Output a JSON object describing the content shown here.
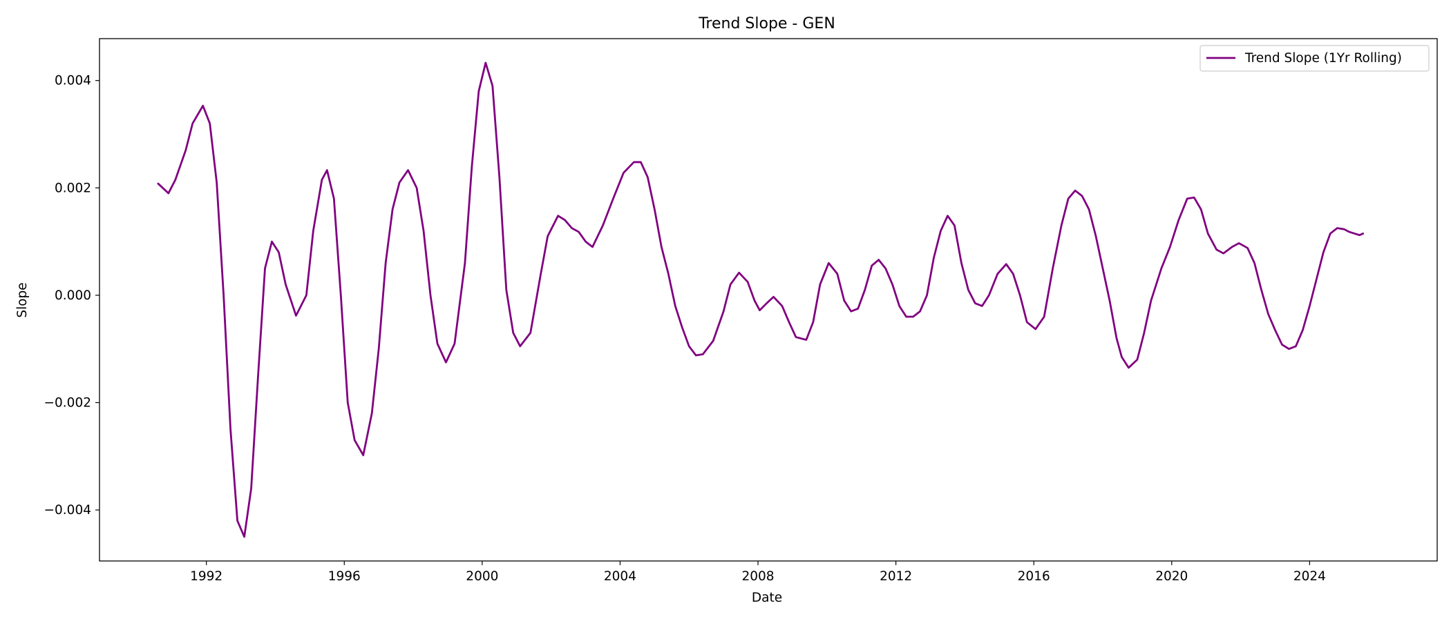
{
  "chart_data": {
    "type": "line",
    "title": "Trend Slope - GEN",
    "xlabel": "Date",
    "ylabel": "Slope",
    "xlim": [
      1988.9,
      2027.7
    ],
    "ylim": [
      -0.00495,
      0.00478
    ],
    "x_ticks": [
      1992,
      1996,
      2000,
      2004,
      2008,
      2012,
      2016,
      2020,
      2024
    ],
    "x_tick_labels": [
      "1992",
      "1996",
      "2000",
      "2004",
      "2008",
      "2012",
      "2016",
      "2020",
      "2024"
    ],
    "y_ticks": [
      -0.004,
      -0.002,
      0.0,
      0.002,
      0.004
    ],
    "y_tick_labels": [
      "−0.004",
      "−0.002",
      "0.000",
      "0.002",
      "0.004"
    ],
    "grid": false,
    "legend_position": "top-right",
    "series": [
      {
        "name": "Trend Slope (1Yr Rolling)",
        "color": "#800080",
        "points": [
          [
            1990.6,
            0.00208
          ],
          [
            1990.9,
            0.0019
          ],
          [
            1991.1,
            0.00215
          ],
          [
            1991.4,
            0.0027
          ],
          [
            1991.6,
            0.0032
          ],
          [
            1991.9,
            0.00353
          ],
          [
            1992.1,
            0.0032
          ],
          [
            1992.3,
            0.0021
          ],
          [
            1992.5,
            0.0
          ],
          [
            1992.7,
            -0.0025
          ],
          [
            1992.9,
            -0.0042
          ],
          [
            1993.1,
            -0.0045
          ],
          [
            1993.3,
            -0.0036
          ],
          [
            1993.5,
            -0.0015
          ],
          [
            1993.7,
            0.0005
          ],
          [
            1993.9,
            0.001
          ],
          [
            1994.1,
            0.0008
          ],
          [
            1994.3,
            0.0002
          ],
          [
            1994.6,
            -0.00038
          ],
          [
            1994.9,
            0.0
          ],
          [
            1995.1,
            0.0012
          ],
          [
            1995.35,
            0.00215
          ],
          [
            1995.5,
            0.00233
          ],
          [
            1995.7,
            0.0018
          ],
          [
            1995.9,
            0.0
          ],
          [
            1996.1,
            -0.002
          ],
          [
            1996.3,
            -0.0027
          ],
          [
            1996.55,
            -0.00298
          ],
          [
            1996.8,
            -0.0022
          ],
          [
            1997.0,
            -0.001
          ],
          [
            1997.2,
            0.0006
          ],
          [
            1997.4,
            0.0016
          ],
          [
            1997.6,
            0.0021
          ],
          [
            1997.85,
            0.00233
          ],
          [
            1998.1,
            0.002
          ],
          [
            1998.3,
            0.0012
          ],
          [
            1998.5,
            0.0
          ],
          [
            1998.7,
            -0.0009
          ],
          [
            1998.95,
            -0.00125
          ],
          [
            1999.2,
            -0.0009
          ],
          [
            1999.5,
            0.0006
          ],
          [
            1999.7,
            0.0024
          ],
          [
            1999.9,
            0.0038
          ],
          [
            2000.1,
            0.00433
          ],
          [
            2000.3,
            0.0039
          ],
          [
            2000.5,
            0.0022
          ],
          [
            2000.7,
            0.0001
          ],
          [
            2000.9,
            -0.0007
          ],
          [
            2001.1,
            -0.00095
          ],
          [
            2001.4,
            -0.0007
          ],
          [
            2001.7,
            0.0004
          ],
          [
            2001.9,
            0.0011
          ],
          [
            2002.2,
            0.00148
          ],
          [
            2002.4,
            0.0014
          ],
          [
            2002.6,
            0.00125
          ],
          [
            2002.8,
            0.00118
          ],
          [
            2003.0,
            0.001
          ],
          [
            2003.2,
            0.0009
          ],
          [
            2003.5,
            0.0013
          ],
          [
            2003.8,
            0.0018
          ],
          [
            2004.1,
            0.00228
          ],
          [
            2004.4,
            0.00248
          ],
          [
            2004.6,
            0.00248
          ],
          [
            2004.8,
            0.0022
          ],
          [
            2005.0,
            0.0016
          ],
          [
            2005.2,
            0.0009
          ],
          [
            2005.4,
            0.0004
          ],
          [
            2005.6,
            -0.0002
          ],
          [
            2005.8,
            -0.0006
          ],
          [
            2006.0,
            -0.00095
          ],
          [
            2006.2,
            -0.00112
          ],
          [
            2006.4,
            -0.0011
          ],
          [
            2006.7,
            -0.00085
          ],
          [
            2007.0,
            -0.0003
          ],
          [
            2007.2,
            0.0002
          ],
          [
            2007.45,
            0.00042
          ],
          [
            2007.7,
            0.00025
          ],
          [
            2007.9,
            -0.0001
          ],
          [
            2008.05,
            -0.00028
          ],
          [
            2008.25,
            -0.00015
          ],
          [
            2008.45,
            -3e-05
          ],
          [
            2008.7,
            -0.0002
          ],
          [
            2008.9,
            -0.0005
          ],
          [
            2009.1,
            -0.00078
          ],
          [
            2009.4,
            -0.00083
          ],
          [
            2009.6,
            -0.0005
          ],
          [
            2009.8,
            0.0002
          ],
          [
            2010.05,
            0.0006
          ],
          [
            2010.3,
            0.0004
          ],
          [
            2010.5,
            -0.0001
          ],
          [
            2010.7,
            -0.0003
          ],
          [
            2010.9,
            -0.00025
          ],
          [
            2011.1,
            0.0001
          ],
          [
            2011.3,
            0.00055
          ],
          [
            2011.5,
            0.00066
          ],
          [
            2011.7,
            0.0005
          ],
          [
            2011.9,
            0.0002
          ],
          [
            2012.1,
            -0.0002
          ],
          [
            2012.3,
            -0.0004
          ],
          [
            2012.5,
            -0.0004
          ],
          [
            2012.7,
            -0.0003
          ],
          [
            2012.9,
            0.0
          ],
          [
            2013.1,
            0.0007
          ],
          [
            2013.3,
            0.0012
          ],
          [
            2013.5,
            0.00148
          ],
          [
            2013.7,
            0.0013
          ],
          [
            2013.9,
            0.0006
          ],
          [
            2014.1,
            0.0001
          ],
          [
            2014.3,
            -0.00015
          ],
          [
            2014.5,
            -0.0002
          ],
          [
            2014.7,
            0.0
          ],
          [
            2014.95,
            0.0004
          ],
          [
            2015.2,
            0.00058
          ],
          [
            2015.4,
            0.0004
          ],
          [
            2015.6,
            0.0
          ],
          [
            2015.8,
            -0.0005
          ],
          [
            2016.05,
            -0.00063
          ],
          [
            2016.3,
            -0.0004
          ],
          [
            2016.55,
            0.0005
          ],
          [
            2016.8,
            0.0013
          ],
          [
            2017.0,
            0.0018
          ],
          [
            2017.2,
            0.00195
          ],
          [
            2017.4,
            0.00185
          ],
          [
            2017.6,
            0.0016
          ],
          [
            2017.8,
            0.0011
          ],
          [
            2018.0,
            0.0005
          ],
          [
            2018.2,
            -0.0001
          ],
          [
            2018.4,
            -0.0008
          ],
          [
            2018.55,
            -0.00115
          ],
          [
            2018.75,
            -0.00135
          ],
          [
            2019.0,
            -0.0012
          ],
          [
            2019.2,
            -0.0007
          ],
          [
            2019.4,
            -0.0001
          ],
          [
            2019.7,
            0.0005
          ],
          [
            2019.95,
            0.0009
          ],
          [
            2020.2,
            0.0014
          ],
          [
            2020.45,
            0.0018
          ],
          [
            2020.65,
            0.00182
          ],
          [
            2020.85,
            0.0016
          ],
          [
            2021.05,
            0.00115
          ],
          [
            2021.3,
            0.00085
          ],
          [
            2021.5,
            0.00078
          ],
          [
            2021.75,
            0.0009
          ],
          [
            2021.95,
            0.00097
          ],
          [
            2022.2,
            0.00088
          ],
          [
            2022.4,
            0.0006
          ],
          [
            2022.6,
            0.0001
          ],
          [
            2022.8,
            -0.00035
          ],
          [
            2023.0,
            -0.00065
          ],
          [
            2023.2,
            -0.00092
          ],
          [
            2023.4,
            -0.001
          ],
          [
            2023.6,
            -0.00095
          ],
          [
            2023.8,
            -0.00065
          ],
          [
            2024.0,
            -0.0002
          ],
          [
            2024.2,
            0.0003
          ],
          [
            2024.4,
            0.0008
          ],
          [
            2024.6,
            0.00115
          ],
          [
            2024.8,
            0.00125
          ],
          [
            2025.0,
            0.00123
          ],
          [
            2025.15,
            0.00118
          ],
          [
            2025.3,
            0.00115
          ],
          [
            2025.45,
            0.00112
          ],
          [
            2025.55,
            0.00115
          ]
        ]
      }
    ]
  }
}
